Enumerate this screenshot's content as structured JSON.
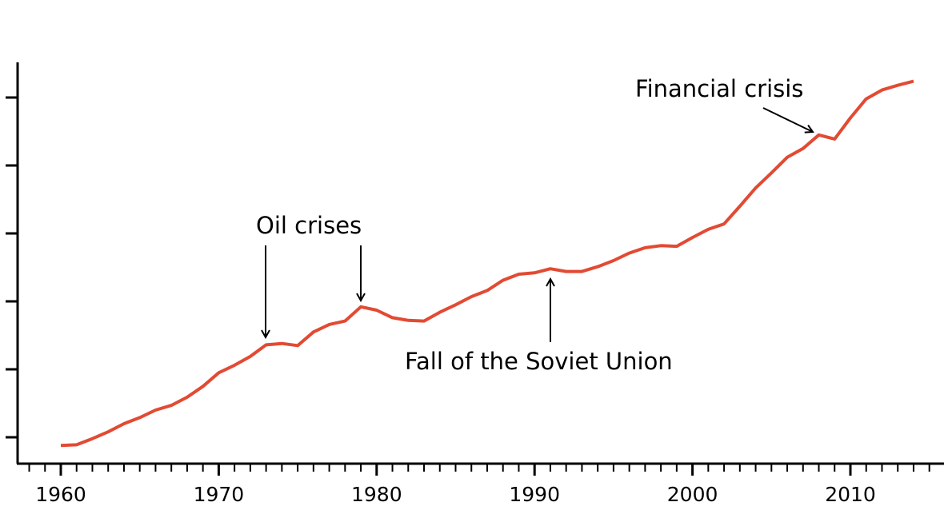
{
  "chart_data": {
    "type": "line",
    "title": "",
    "xlabel": "",
    "ylabel": "",
    "xlim": [
      1957.3,
      2016
    ],
    "ylim": [
      -0.39,
      5.5
    ],
    "grid": false,
    "legend": null,
    "y_tick_labels_visible": false,
    "x_ticks": [
      1960,
      1970,
      1980,
      1990,
      2000,
      2010
    ],
    "x_tick_labels": [
      "1960",
      "1970",
      "1980",
      "1990",
      "2000",
      "2010"
    ],
    "y_ticks": [
      0,
      1,
      2,
      3,
      4,
      5
    ],
    "line_color": "#e24a33",
    "series": [
      {
        "name": "series",
        "x": [
          1960,
          1961,
          1962,
          1963,
          1964,
          1965,
          1966,
          1967,
          1968,
          1969,
          1970,
          1971,
          1972,
          1973,
          1974,
          1975,
          1976,
          1977,
          1978,
          1979,
          1980,
          1981,
          1982,
          1983,
          1984,
          1985,
          1986,
          1987,
          1988,
          1989,
          1990,
          1991,
          1992,
          1993,
          1994,
          1995,
          1996,
          1997,
          1998,
          1999,
          2000,
          2001,
          2002,
          2003,
          2004,
          2005,
          2006,
          2007,
          2008,
          2009,
          2010,
          2011,
          2012,
          2013,
          2014
        ],
        "values": [
          -0.12,
          -0.11,
          -0.02,
          0.08,
          0.2,
          0.29,
          0.4,
          0.47,
          0.59,
          0.75,
          0.95,
          1.06,
          1.19,
          1.36,
          1.38,
          1.35,
          1.55,
          1.66,
          1.71,
          1.92,
          1.87,
          1.76,
          1.72,
          1.71,
          1.84,
          1.95,
          2.07,
          2.16,
          2.31,
          2.4,
          2.42,
          2.48,
          2.44,
          2.44,
          2.51,
          2.6,
          2.71,
          2.79,
          2.82,
          2.81,
          2.94,
          3.06,
          3.14,
          3.4,
          3.67,
          3.89,
          4.12,
          4.25,
          4.45,
          4.39,
          4.7,
          4.98,
          5.11,
          5.18,
          5.24
        ]
      }
    ],
    "annotations": [
      {
        "text": "Oil crises",
        "points_to": [
          1973,
          1979
        ],
        "arrow_dir": "down"
      },
      {
        "text": "Fall of the Soviet Union",
        "points_to": [
          1991
        ],
        "arrow_dir": "up"
      },
      {
        "text": "Financial crisis",
        "points_to": [
          2008
        ],
        "arrow_dir": "down-right"
      }
    ]
  }
}
